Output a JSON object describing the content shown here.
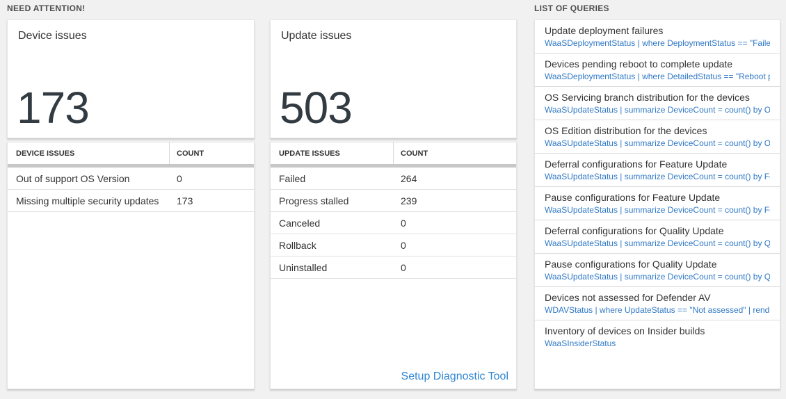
{
  "sections": {
    "need_attention_label": "NEED ATTENTION!",
    "list_of_queries_label": "LIST OF QUERIES"
  },
  "device_card": {
    "title": "Device issues",
    "big_number": "173",
    "table": {
      "headers": [
        "DEVICE ISSUES",
        "COUNT"
      ],
      "rows": [
        {
          "name": "Out of support OS Version",
          "count": "0"
        },
        {
          "name": "Missing multiple security updates",
          "count": "173"
        }
      ]
    }
  },
  "update_card": {
    "title": "Update issues",
    "big_number": "503",
    "table": {
      "headers": [
        "UPDATE ISSUES",
        "COUNT"
      ],
      "rows": [
        {
          "name": "Failed",
          "count": "264"
        },
        {
          "name": "Progress stalled",
          "count": "239"
        },
        {
          "name": "Canceled",
          "count": "0"
        },
        {
          "name": "Rollback",
          "count": "0"
        },
        {
          "name": "Uninstalled",
          "count": "0"
        }
      ]
    },
    "link_label": "Setup Diagnostic Tool"
  },
  "queries": {
    "items": [
      {
        "title": "Update deployment failures",
        "query": "WaaSDeploymentStatus | where DeploymentStatus == \"Failed\" |..."
      },
      {
        "title": "Devices pending reboot to complete update",
        "query": "WaaSDeploymentStatus | where DetailedStatus == \"Reboot pend..."
      },
      {
        "title": "OS Servicing branch distribution for the devices",
        "query": "WaaSUpdateStatus | summarize DeviceCount = count() by OSSer..."
      },
      {
        "title": "OS Edition distribution for the devices",
        "query": "WaaSUpdateStatus | summarize DeviceCount = count() by OSEdit..."
      },
      {
        "title": "Deferral configurations for Feature Update",
        "query": "WaaSUpdateStatus | summarize DeviceCount = count() by Featur..."
      },
      {
        "title": "Pause configurations for Feature Update",
        "query": "WaaSUpdateStatus | summarize DeviceCount = count() by Featur..."
      },
      {
        "title": "Deferral configurations for Quality Update",
        "query": "WaaSUpdateStatus | summarize DeviceCount = count() by Qualit..."
      },
      {
        "title": "Pause configurations for Quality Update",
        "query": "WaaSUpdateStatus | summarize DeviceCount = count() by Qualit..."
      },
      {
        "title": "Devices not assessed for Defender AV",
        "query": "WDAVStatus | where UpdateStatus == \"Not assessed\" | render ta..."
      },
      {
        "title": "Inventory of devices on Insider builds",
        "query": "WaaSInsiderStatus"
      }
    ]
  },
  "colors": {
    "page_background": "#f1f1f1",
    "query_link_blue": "#3079c6",
    "diagnostic_link_blue": "#2f86d2",
    "big_number_color": "#323a42",
    "header_bar_gray": "#c7c7c7"
  }
}
